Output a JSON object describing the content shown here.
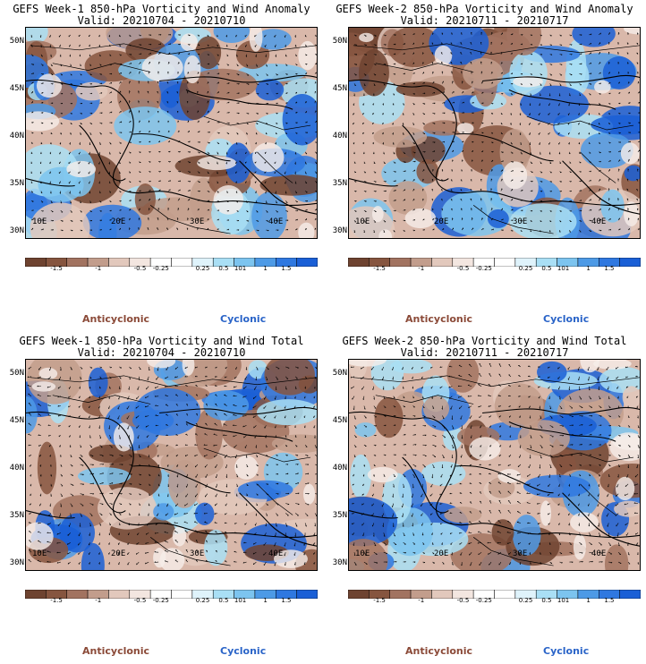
{
  "panels": [
    {
      "title_line1": "GEFS Week-1 850-hPa Vorticity and Wind Anomaly",
      "title_line2": "Valid: 20210704 - 20210710",
      "variant": 0
    },
    {
      "title_line1": "GEFS Week-2 850-hPa Vorticity and Wind Anomaly",
      "title_line2": "Valid: 20210711 - 20210717",
      "variant": 1
    },
    {
      "title_line1": "GEFS Week-1 850-hPa Vorticity and Wind Total",
      "title_line2": "Valid: 20210704 - 20210710",
      "variant": 2
    },
    {
      "title_line1": "GEFS Week-2 850-hPa Vorticity and Wind Total",
      "title_line2": "Valid: 20210711 - 20210717",
      "variant": 3
    }
  ],
  "lat_labels": [
    "50N",
    "45N",
    "40N",
    "35N",
    "30N"
  ],
  "lon_labels": [
    "10E",
    "20E",
    "30E",
    "40E"
  ],
  "colorbar": {
    "labels": [
      "-1.5",
      "-1",
      "-0.5",
      "-0.25",
      "0.25",
      "0.5",
      "1",
      "1.5"
    ],
    "small_mark": "101",
    "colors": [
      "#6e4330",
      "#86553f",
      "#a27360",
      "#c29d8c",
      "#e2c8bc",
      "#f3e6e0",
      "#ffffff",
      "#ffffff",
      "#dff3fb",
      "#a9dff5",
      "#7cc4ef",
      "#4d9ae6",
      "#2f78e0",
      "#1a5fd6"
    ]
  },
  "legend": {
    "anticyclonic": "Anticyclonic",
    "cyclonic": "Cyclonic"
  },
  "colors": {
    "anticyclonic": "#8b4a38",
    "cyclonic": "#2a64c8"
  }
}
